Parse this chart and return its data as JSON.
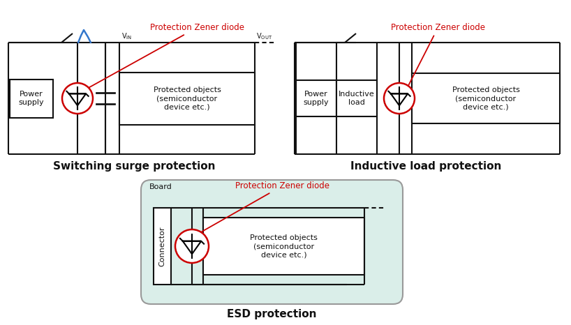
{
  "title1": "Switching surge protection",
  "title2": "Inductive load protection",
  "title3": "ESD protection",
  "label_zener": "Protection Zener diode",
  "label_power": "Power\nsupply",
  "label_protected": "Protected objects\n(semiconductor\ndevice etc.)",
  "label_inductive": "Inductive\nload",
  "label_connector": "Connector",
  "label_board": "Board",
  "color_red": "#cc0000",
  "color_blue": "#3377cc",
  "color_black": "#111111",
  "color_gray_border": "#999999",
  "color_board_bg": "#daeee9",
  "lw": 1.5,
  "bg_color": "#ffffff"
}
